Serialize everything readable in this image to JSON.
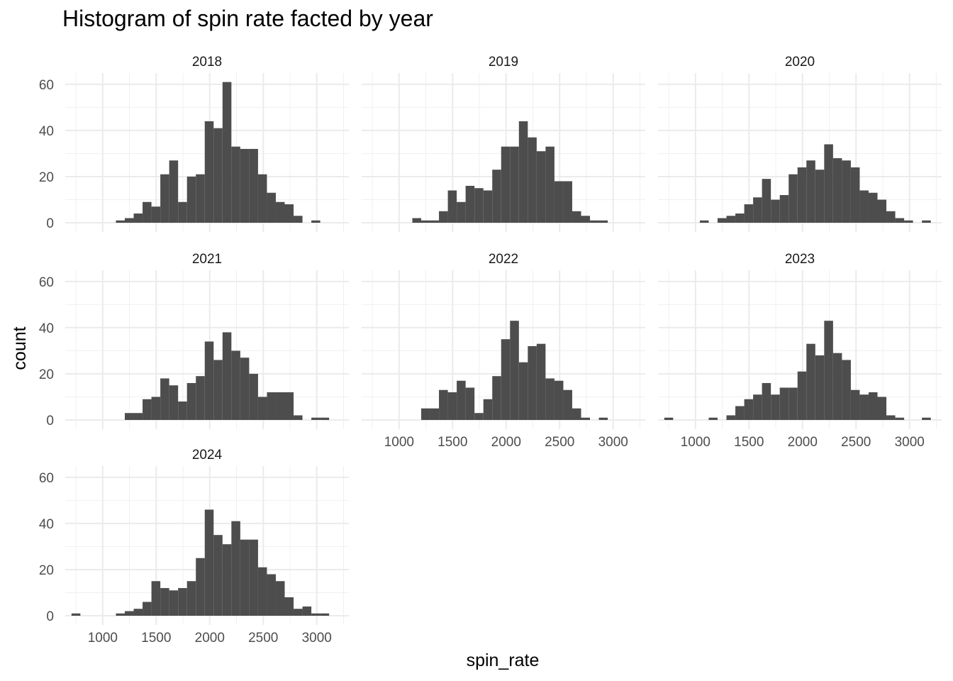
{
  "chart_data": {
    "type": "bar",
    "title": "Histogram of spin rate facted by year",
    "xlabel": "spin_rate",
    "ylabel": "count",
    "xlim": [
      650,
      3300
    ],
    "ylim": [
      0,
      64
    ],
    "x_ticks": [
      1000,
      1500,
      2000,
      2500,
      3000
    ],
    "y_ticks": [
      0,
      20,
      40,
      60
    ],
    "bin_width": 83,
    "bin_start": 750,
    "bar_color": "#4d4d4d",
    "grid": true,
    "facets": [
      {
        "label": "2018",
        "values": [
          0,
          0,
          0,
          0,
          0,
          1,
          2,
          4,
          9,
          7,
          21,
          27,
          9,
          20,
          21,
          44,
          41,
          61,
          33,
          32,
          32,
          21,
          13,
          9,
          8,
          3,
          0,
          1,
          0,
          0
        ]
      },
      {
        "label": "2019",
        "values": [
          0,
          0,
          0,
          0,
          0,
          2,
          1,
          1,
          5,
          14,
          9,
          16,
          15,
          14,
          23,
          33,
          33,
          44,
          37,
          31,
          33,
          18,
          18,
          5,
          3,
          1,
          1,
          0,
          0,
          0
        ]
      },
      {
        "label": "2020",
        "values": [
          0,
          0,
          0,
          0,
          1,
          0,
          2,
          3,
          4,
          8,
          11,
          19,
          10,
          12,
          21,
          24,
          27,
          23,
          34,
          28,
          27,
          24,
          14,
          13,
          10,
          5,
          2,
          1,
          0,
          1
        ]
      },
      {
        "label": "2021",
        "values": [
          0,
          0,
          0,
          0,
          0,
          0,
          3,
          3,
          9,
          10,
          18,
          15,
          8,
          16,
          19,
          34,
          26,
          38,
          30,
          27,
          20,
          10,
          12,
          12,
          12,
          2,
          0,
          1,
          1,
          0
        ]
      },
      {
        "label": "2022",
        "values": [
          0,
          0,
          0,
          0,
          0,
          0,
          5,
          5,
          13,
          12,
          17,
          14,
          3,
          9,
          19,
          35,
          43,
          25,
          32,
          33,
          18,
          17,
          13,
          5,
          1,
          0,
          1,
          0,
          0,
          0
        ]
      },
      {
        "label": "2023",
        "values": [
          1,
          0,
          0,
          0,
          0,
          1,
          0,
          2,
          6,
          9,
          11,
          16,
          11,
          14,
          14,
          21,
          33,
          28,
          43,
          29,
          26,
          13,
          11,
          12,
          10,
          2,
          1,
          0,
          0,
          1
        ]
      },
      {
        "label": "2024",
        "values": [
          1,
          0,
          0,
          0,
          0,
          1,
          2,
          3,
          6,
          15,
          12,
          11,
          12,
          15,
          25,
          46,
          35,
          31,
          41,
          33,
          33,
          21,
          18,
          15,
          8,
          3,
          4,
          1,
          1,
          0
        ]
      }
    ]
  }
}
